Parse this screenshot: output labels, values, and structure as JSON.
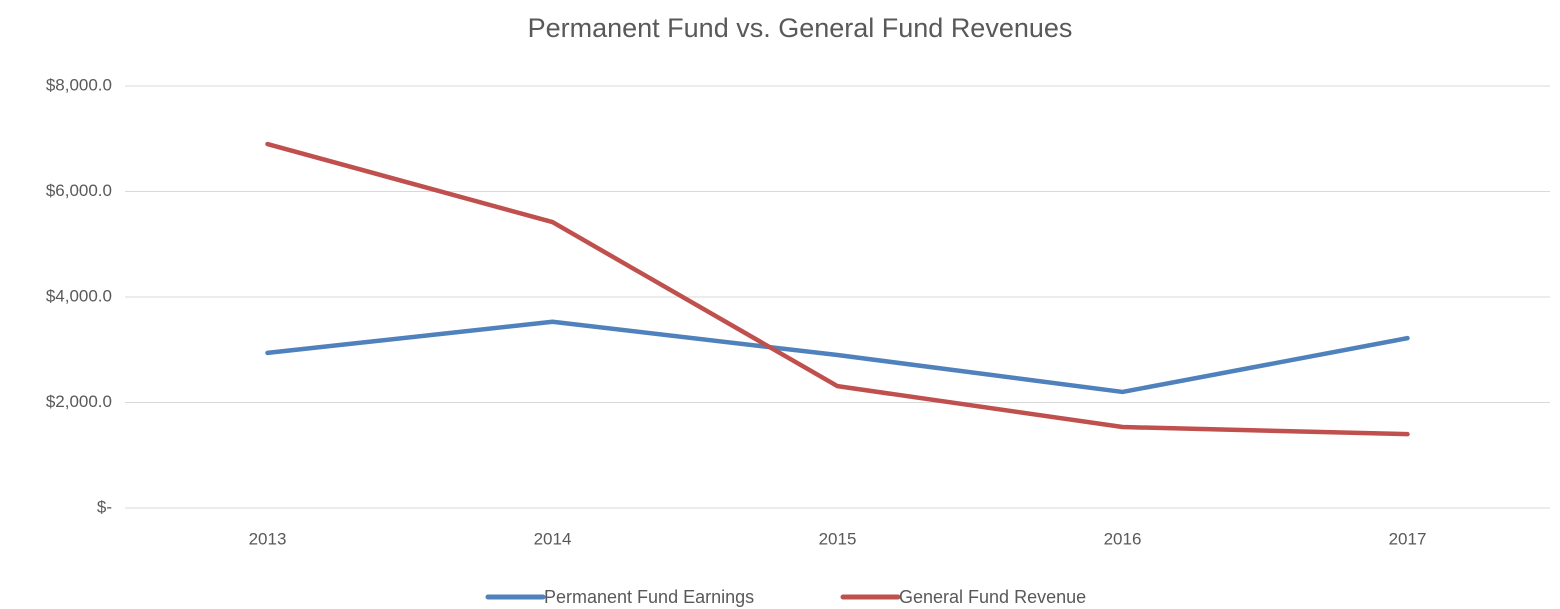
{
  "chart_data": {
    "type": "line",
    "title": "Permanent Fund vs. General Fund Revenues",
    "categories": [
      "2013",
      "2014",
      "2015",
      "2016",
      "2017"
    ],
    "series": [
      {
        "name": "Permanent Fund Earnings",
        "color": "#4f81bd",
        "values": [
          2940,
          3530,
          2900,
          2200,
          3220
        ]
      },
      {
        "name": "General Fund Revenue",
        "color": "#c0504d",
        "values": [
          6900,
          5420,
          2310,
          1535,
          1400
        ]
      }
    ],
    "ylim": [
      0,
      8000
    ],
    "yticks": [
      {
        "value": 0,
        "label": "$-"
      },
      {
        "value": 2000,
        "label": "$2,000.0"
      },
      {
        "value": 4000,
        "label": "$4,000.0"
      },
      {
        "value": 6000,
        "label": "$6,000.0"
      },
      {
        "value": 8000,
        "label": "$8,000.0"
      }
    ],
    "grid": true,
    "legend": "bottom"
  }
}
